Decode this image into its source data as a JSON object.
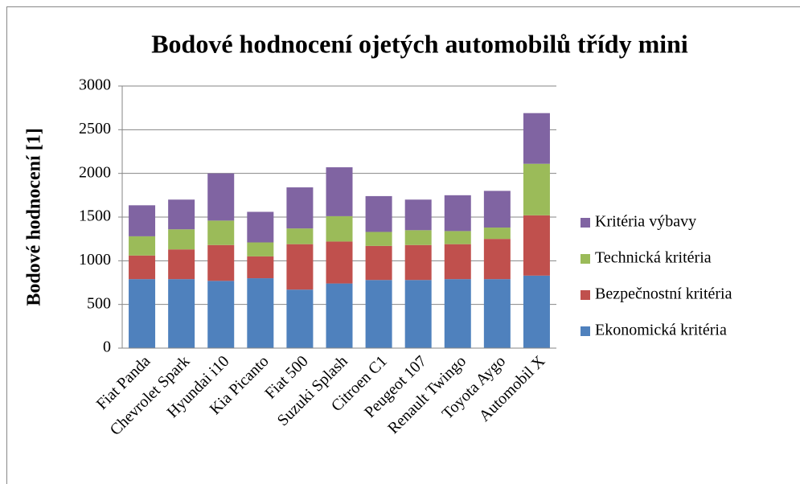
{
  "chart_data": {
    "type": "stacked_bar",
    "title": "Bodové hodnocení ojetých automobilů třídy mini",
    "y_label": "Bodové hodnocení [1]",
    "categories": [
      "Fiat Panda",
      "Chevrolet Spark",
      "Hyundai i10",
      "Kia Picanto",
      "Fiat 500",
      "Suzuki Splash",
      "Citroen C1",
      "Peugeot 107",
      "Renault Twingo",
      "Toyota Aygo",
      "Automobil X"
    ],
    "series": [
      {
        "name": "Ekonomická kritéria",
        "color": "#4f81bd",
        "values": [
          790,
          790,
          770,
          800,
          670,
          740,
          780,
          780,
          790,
          790,
          830
        ]
      },
      {
        "name": "Bezpečnostní kritéria",
        "color": "#c0504d",
        "values": [
          270,
          340,
          410,
          250,
          520,
          480,
          390,
          400,
          400,
          460,
          690
        ]
      },
      {
        "name": "Technická kritéria",
        "color": "#9bbb59",
        "values": [
          220,
          230,
          280,
          160,
          180,
          290,
          160,
          170,
          150,
          130,
          590
        ]
      },
      {
        "name": "Kritéria výbavy",
        "color": "#8064a2",
        "values": [
          355,
          340,
          540,
          350,
          470,
          560,
          410,
          350,
          410,
          420,
          580
        ]
      }
    ],
    "ylim": [
      0,
      3000
    ],
    "yticks": [
      0,
      500,
      1000,
      1500,
      2000,
      2500,
      3000
    ],
    "grid": true,
    "legend": "right"
  }
}
